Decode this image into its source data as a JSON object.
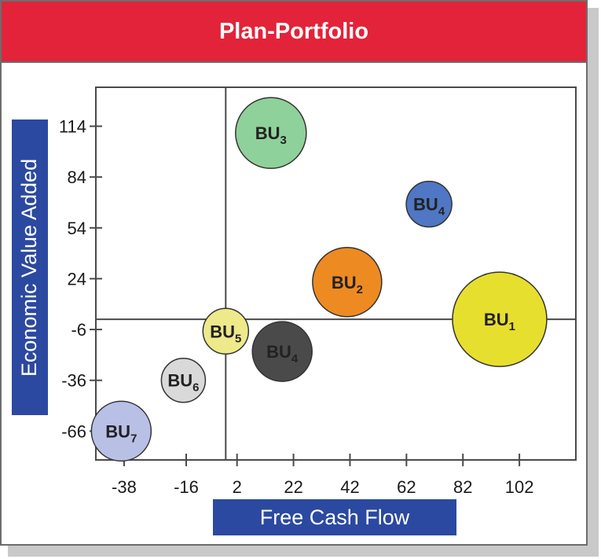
{
  "colors": {
    "banner": "#E2233A",
    "axis_box": "#2B49A0",
    "frame": "#4a4a4a"
  },
  "chart_data": {
    "type": "scatter",
    "title": "Plan-Portfolio",
    "xlabel": "Free Cash Flow",
    "ylabel": "Economic Value Added",
    "xticks": [
      -38,
      -16,
      2,
      22,
      42,
      62,
      82,
      102
    ],
    "yticks": [
      114,
      84,
      54,
      24,
      -6,
      -36,
      -66
    ],
    "xlim": [
      -48,
      122
    ],
    "ylim": [
      -83,
      137
    ],
    "quadrant_lines": {
      "x": -2,
      "y": 0
    },
    "points": [
      {
        "label": "BU",
        "sub": "1",
        "x": 95,
        "y": 0,
        "size": 60,
        "color": "#E7DF2E"
      },
      {
        "label": "BU",
        "sub": "2",
        "x": 41,
        "y": 22,
        "size": 44,
        "color": "#EE8A22"
      },
      {
        "label": "BU",
        "sub": "3",
        "x": 14,
        "y": 110,
        "size": 45,
        "color": "#8FD19A"
      },
      {
        "label": "BU",
        "sub": "4",
        "x": 70,
        "y": 68,
        "size": 29,
        "color": "#4F77C4"
      },
      {
        "label": "BU",
        "sub": "4",
        "x": 18,
        "y": -19,
        "size": 38,
        "color": "#4A4A4A"
      },
      {
        "label": "BU",
        "sub": "5",
        "x": -2,
        "y": -7,
        "size": 29,
        "color": "#EEE98A"
      },
      {
        "label": "BU",
        "sub": "6",
        "x": -17,
        "y": -36,
        "size": 28,
        "color": "#D9D9D9"
      },
      {
        "label": "BU",
        "sub": "7",
        "x": -39,
        "y": -66,
        "size": 38,
        "color": "#B9C0E6"
      }
    ]
  }
}
